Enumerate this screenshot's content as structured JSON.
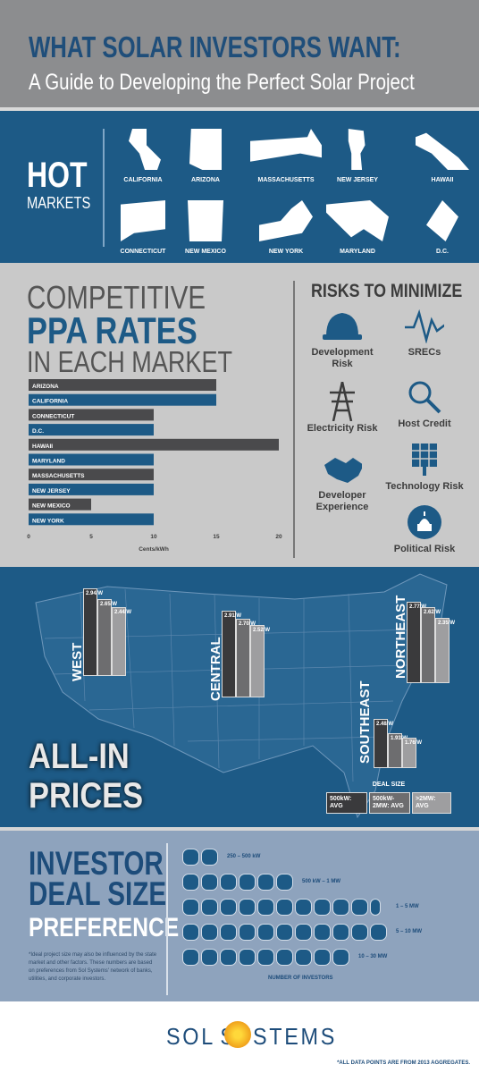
{
  "header": {
    "title": "WHAT SOLAR INVESTORS WANT:",
    "subtitle": "A Guide to Developing the Perfect Solar Project"
  },
  "hot_markets": {
    "title": "HOT",
    "subtitle": "MARKETS",
    "states": [
      "CALIFORNIA",
      "ARIZONA",
      "MASSACHUSETTS",
      "NEW JERSEY",
      "HAWAII",
      "CONNECTICUT",
      "NEW MEXICO",
      "NEW YORK",
      "MARYLAND",
      "D.C."
    ]
  },
  "ppa": {
    "line1": "COMPETITIVE",
    "line2": "PPA RATES",
    "line3": "IN EACH MARKET"
  },
  "risks": {
    "title": "RISKS TO MINIMIZE",
    "items": [
      {
        "label": "Development Risk",
        "icon": "hardhat-icon"
      },
      {
        "label": "SRECs",
        "icon": "pulse-icon"
      },
      {
        "label": "Electricity Risk",
        "icon": "power-tower-icon"
      },
      {
        "label": "Host Credit",
        "icon": "magnifier-icon"
      },
      {
        "label": "Developer Experience",
        "icon": "handshake-icon"
      },
      {
        "label": "Technology Risk",
        "icon": "solar-panel-icon"
      },
      {
        "label": "Political Risk",
        "icon": "capitol-icon"
      }
    ]
  },
  "chart_data": [
    {
      "type": "bar",
      "orientation": "horizontal",
      "categories": [
        "ARIZONA",
        "CALIFORNIA",
        "CONNECTICUT",
        "D.C.",
        "HAWAII",
        "MARYLAND",
        "MASSACHUSETTS",
        "NEW JERSEY",
        "NEW MEXICO",
        "NEW YORK"
      ],
      "values": [
        15,
        15,
        10,
        10,
        20,
        10,
        10,
        10,
        5,
        10
      ],
      "xlabel": "Cents/kWh",
      "xlim": [
        0,
        20
      ],
      "ticks": [
        "0",
        "5",
        "10",
        "15",
        "20"
      ],
      "colors": {
        "dark": "#4a4a4c",
        "blue": "#1d5a86"
      }
    },
    {
      "type": "bar",
      "title": "ALL-IN PRICES",
      "categories": [
        "WEST",
        "CENTRAL",
        "NORTHEAST",
        "SOUTHEAST"
      ],
      "series": [
        {
          "name": "500kW: AVG",
          "values": [
            2.94,
            2.91,
            2.77,
            2.48
          ],
          "labels": [
            "2.94/W",
            "2.91/W",
            "2.77/W",
            "2.48/W"
          ]
        },
        {
          "name": "500kW-2MW: AVG",
          "values": [
            2.65,
            2.7,
            2.62,
            1.93
          ],
          "labels": [
            "2.65/W",
            "2.70/W",
            "2.62/W",
            "1.93/W"
          ]
        },
        {
          "name": ">2MW: AVG",
          "values": [
            2.44,
            2.52,
            2.35,
            1.76
          ],
          "labels": [
            "2.44/W",
            "2.52/W",
            "2.35/W",
            "1.76/W"
          ]
        }
      ],
      "legend_title": "DEAL SIZE",
      "colors": [
        "#3a3a3c",
        "#6d6d6f",
        "#9e9ea0"
      ]
    },
    {
      "type": "bar",
      "title": "INVESTOR DEAL SIZE PREFERENCE",
      "categories": [
        "250 – 500 kW",
        "500 kW – 1 MW",
        "1 – 5 MW",
        "5 – 10 MW",
        "10 – 30 MW"
      ],
      "values": [
        2,
        6,
        10.5,
        11,
        9
      ],
      "xlabel": "NUMBER OF INVESTORS"
    }
  ],
  "ppa_axis": {
    "ticks": [
      "0",
      "5",
      "10",
      "15",
      "20"
    ],
    "xlabel": "Cents/kWh"
  },
  "all_in": {
    "line1": "ALL-IN",
    "line2": "PRICES",
    "legend_title": "DEAL SIZE",
    "legend_keys": [
      "500kW: AVG",
      "500kW-\n2MW: AVG",
      ">2MW: AVG"
    ]
  },
  "deal": {
    "line1": "INVESTOR",
    "line2": "DEAL SIZE",
    "line3": "PREFERENCE",
    "note": "*Ideal project size may also be influenced by the state market and other factors. These numbers are based on preferences from Sol Systems' network of banks, utilities, and corporate investors.",
    "xlabel": "NUMBER OF INVESTORS"
  },
  "footer": {
    "logo_left": "SOL",
    "logo_right": "SYSTEMS",
    "logo_o": "O",
    "note": "*ALL DATA POINTS ARE FROM 2013 AGGREGATES."
  }
}
